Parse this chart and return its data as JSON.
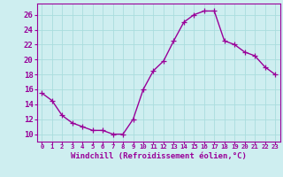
{
  "x": [
    0,
    1,
    2,
    3,
    4,
    5,
    6,
    7,
    8,
    9,
    10,
    11,
    12,
    13,
    14,
    15,
    16,
    17,
    18,
    19,
    20,
    21,
    22,
    23
  ],
  "y": [
    15.5,
    14.5,
    12.5,
    11.5,
    11.0,
    10.5,
    10.5,
    10.0,
    10.0,
    12.0,
    16.0,
    18.5,
    19.8,
    22.5,
    25.0,
    26.0,
    26.5,
    26.5,
    22.5,
    22.0,
    21.0,
    20.5,
    19.0,
    18.0
  ],
  "line_color": "#990099",
  "marker": "+",
  "markersize": 4,
  "linewidth": 1.0,
  "xlabel": "Windchill (Refroidissement éolien,°C)",
  "xlim": [
    -0.5,
    23.5
  ],
  "ylim": [
    9,
    27.5
  ],
  "yticks": [
    10,
    12,
    14,
    16,
    18,
    20,
    22,
    24,
    26
  ],
  "xticks": [
    0,
    1,
    2,
    3,
    4,
    5,
    6,
    7,
    8,
    9,
    10,
    11,
    12,
    13,
    14,
    15,
    16,
    17,
    18,
    19,
    20,
    21,
    22,
    23
  ],
  "background_color": "#ceeef0",
  "grid_color": "#aadddd",
  "tick_color": "#990099",
  "label_color": "#990099",
  "xlabel_fontsize": 6.5,
  "ytick_fontsize": 6.5,
  "xtick_fontsize": 5.2
}
